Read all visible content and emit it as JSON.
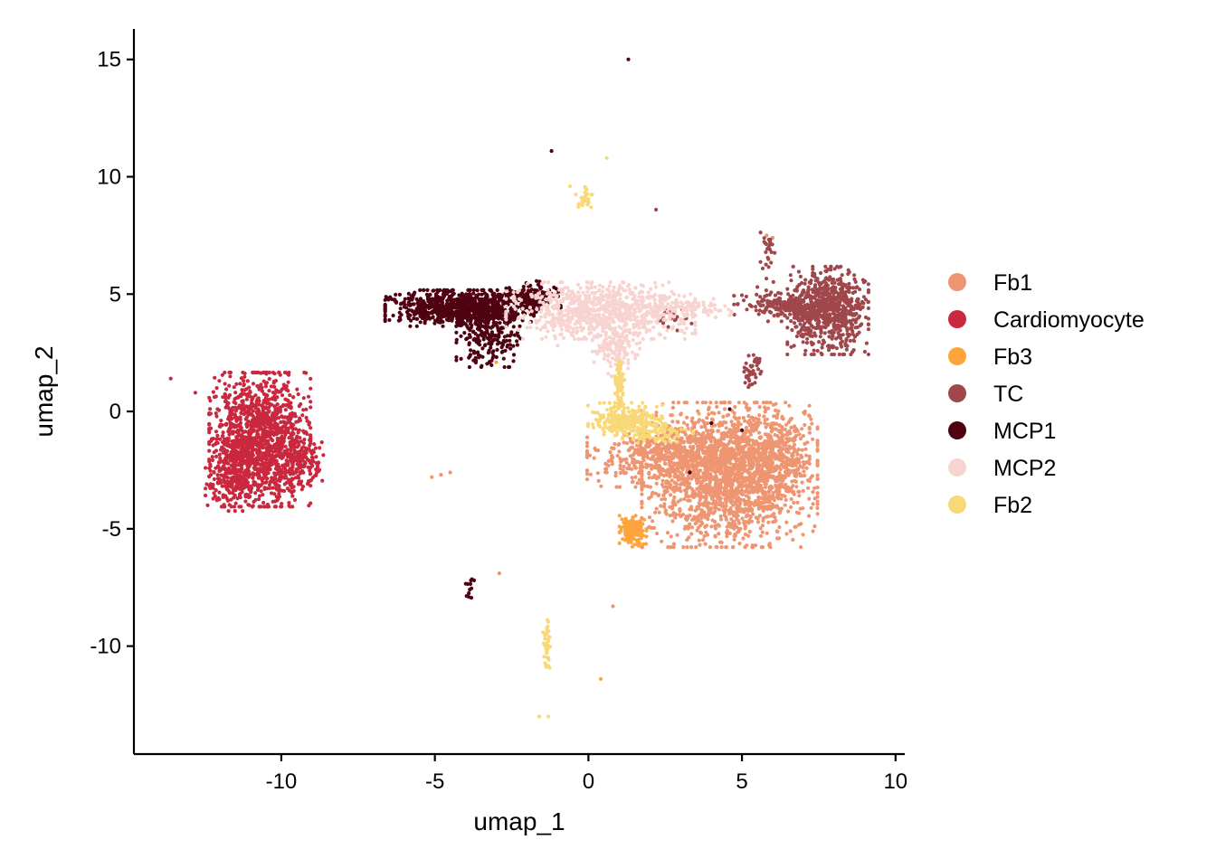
{
  "chart_data": {
    "type": "scatter",
    "xlabel": "umap_1",
    "ylabel": "umap_2",
    "xlim": [
      -14.8,
      10.3
    ],
    "ylim": [
      -14.6,
      16.3
    ],
    "x_ticks": [
      -10,
      -5,
      0,
      5,
      10
    ],
    "y_ticks": [
      15,
      10,
      5,
      0,
      -5,
      -10
    ],
    "x_tick_labels": [
      "-10",
      "-5",
      "0",
      "5",
      "10"
    ],
    "y_tick_labels": [
      "15",
      "10",
      "5",
      "0",
      "-5",
      "-10"
    ],
    "grid": false,
    "legend_position": "right",
    "series": [
      {
        "name": "Fb1",
        "color": "#EE9572",
        "clusters": [
          {
            "cx": 4.6,
            "cy": -2.7,
            "sx": 1.3,
            "sy": 1.4,
            "n": 1900
          },
          {
            "cx": 2.6,
            "cy": -1.9,
            "sx": 1.2,
            "sy": 0.6,
            "n": 550
          },
          {
            "cx": 6.1,
            "cy": -1.6,
            "sx": 0.5,
            "sy": 0.9,
            "n": 300
          }
        ],
        "points": [
          [
            -5.1,
            -2.8
          ],
          [
            -4.8,
            -2.7
          ],
          [
            -4.5,
            -2.6
          ],
          [
            -2.9,
            -6.9
          ],
          [
            0.8,
            -8.3
          ],
          [
            6.0,
            7.4
          ],
          [
            5.8,
            7.5
          ]
        ]
      },
      {
        "name": "Cardiomyocyte",
        "color": "#C9283E",
        "clusters": [
          {
            "cx": -10.7,
            "cy": -1.2,
            "sx": 0.75,
            "sy": 1.3,
            "n": 1400
          },
          {
            "cx": -11.7,
            "cy": -2.7,
            "sx": 0.35,
            "sy": 0.7,
            "n": 170
          },
          {
            "cx": -9.4,
            "cy": -2.0,
            "sx": 0.35,
            "sy": 0.5,
            "n": 150
          }
        ],
        "points": [
          [
            -13.6,
            1.4
          ],
          [
            -12.8,
            0.8
          ],
          [
            -12.4,
            -4.0
          ],
          [
            -12.1,
            1.0
          ]
        ]
      },
      {
        "name": "Fb3",
        "color": "#FFA43C",
        "clusters": [
          {
            "cx": 1.45,
            "cy": -5.1,
            "sx": 0.2,
            "sy": 0.3,
            "n": 160
          }
        ],
        "points": [
          [
            0.4,
            -11.4
          ],
          [
            -3.0,
            2.1
          ],
          [
            3.6,
            -0.1
          ],
          [
            2.9,
            -0.8
          ]
        ]
      },
      {
        "name": "TC",
        "color": "#A0474B",
        "clusters": [
          {
            "cx": 7.8,
            "cy": 4.3,
            "sx": 0.6,
            "sy": 0.85,
            "n": 700
          },
          {
            "cx": 6.5,
            "cy": 4.5,
            "sx": 0.8,
            "sy": 0.3,
            "n": 200
          },
          {
            "cx": 5.3,
            "cy": 1.8,
            "sx": 0.15,
            "sy": 0.35,
            "n": 40
          },
          {
            "cx": 2.7,
            "cy": 4.0,
            "sx": 0.3,
            "sy": 0.25,
            "n": 30
          },
          {
            "cx": 5.8,
            "cy": 6.6,
            "sx": 0.12,
            "sy": 0.6,
            "n": 25
          }
        ],
        "points": [
          [
            2.2,
            8.6
          ],
          [
            5.5,
            5.3
          ],
          [
            2.6,
            3.6
          ]
        ]
      },
      {
        "name": "MCP1",
        "color": "#4E0212",
        "clusters": [
          {
            "cx": -4.2,
            "cy": 4.4,
            "sx": 1.1,
            "sy": 0.35,
            "n": 850
          },
          {
            "cx": -3.2,
            "cy": 3.1,
            "sx": 0.5,
            "sy": 0.55,
            "n": 200
          },
          {
            "cx": -2.0,
            "cy": 4.9,
            "sx": 0.5,
            "sy": 0.3,
            "n": 150
          },
          {
            "cx": -3.9,
            "cy": -7.5,
            "sx": 0.08,
            "sy": 0.2,
            "n": 12
          }
        ],
        "points": [
          [
            1.3,
            15.0
          ],
          [
            -1.2,
            11.1
          ],
          [
            4.0,
            -0.5
          ],
          [
            5.0,
            -0.8
          ],
          [
            3.3,
            -2.6
          ],
          [
            4.6,
            0.1
          ]
        ]
      },
      {
        "name": "MCP2",
        "color": "#F8D4D0",
        "clusters": [
          {
            "cx": 0.4,
            "cy": 4.3,
            "sx": 1.4,
            "sy": 0.55,
            "n": 800
          },
          {
            "cx": 0.9,
            "cy": 2.6,
            "sx": 0.35,
            "sy": 0.5,
            "n": 150
          },
          {
            "cx": 3.2,
            "cy": 4.4,
            "sx": 0.8,
            "sy": 0.18,
            "n": 80
          }
        ],
        "points": [
          [
            4.6,
            4.1
          ],
          [
            4.3,
            4.3
          ],
          [
            -1.0,
            2.8
          ]
        ]
      },
      {
        "name": "Fb2",
        "color": "#F8D877",
        "clusters": [
          {
            "cx": 1.2,
            "cy": -0.4,
            "sx": 0.55,
            "sy": 0.35,
            "n": 260
          },
          {
            "cx": 1.0,
            "cy": 1.1,
            "sx": 0.08,
            "sy": 0.6,
            "n": 70
          },
          {
            "cx": -0.1,
            "cy": 9.1,
            "sx": 0.15,
            "sy": 0.25,
            "n": 30
          },
          {
            "cx": -1.35,
            "cy": -9.9,
            "sx": 0.06,
            "sy": 0.55,
            "n": 40
          },
          {
            "cx": 2.3,
            "cy": -0.9,
            "sx": 0.5,
            "sy": 0.2,
            "n": 60
          }
        ],
        "points": [
          [
            0.6,
            10.8
          ],
          [
            -0.6,
            9.6
          ],
          [
            -1.6,
            -13.0
          ],
          [
            -1.3,
            -13.0
          ]
        ]
      }
    ]
  }
}
